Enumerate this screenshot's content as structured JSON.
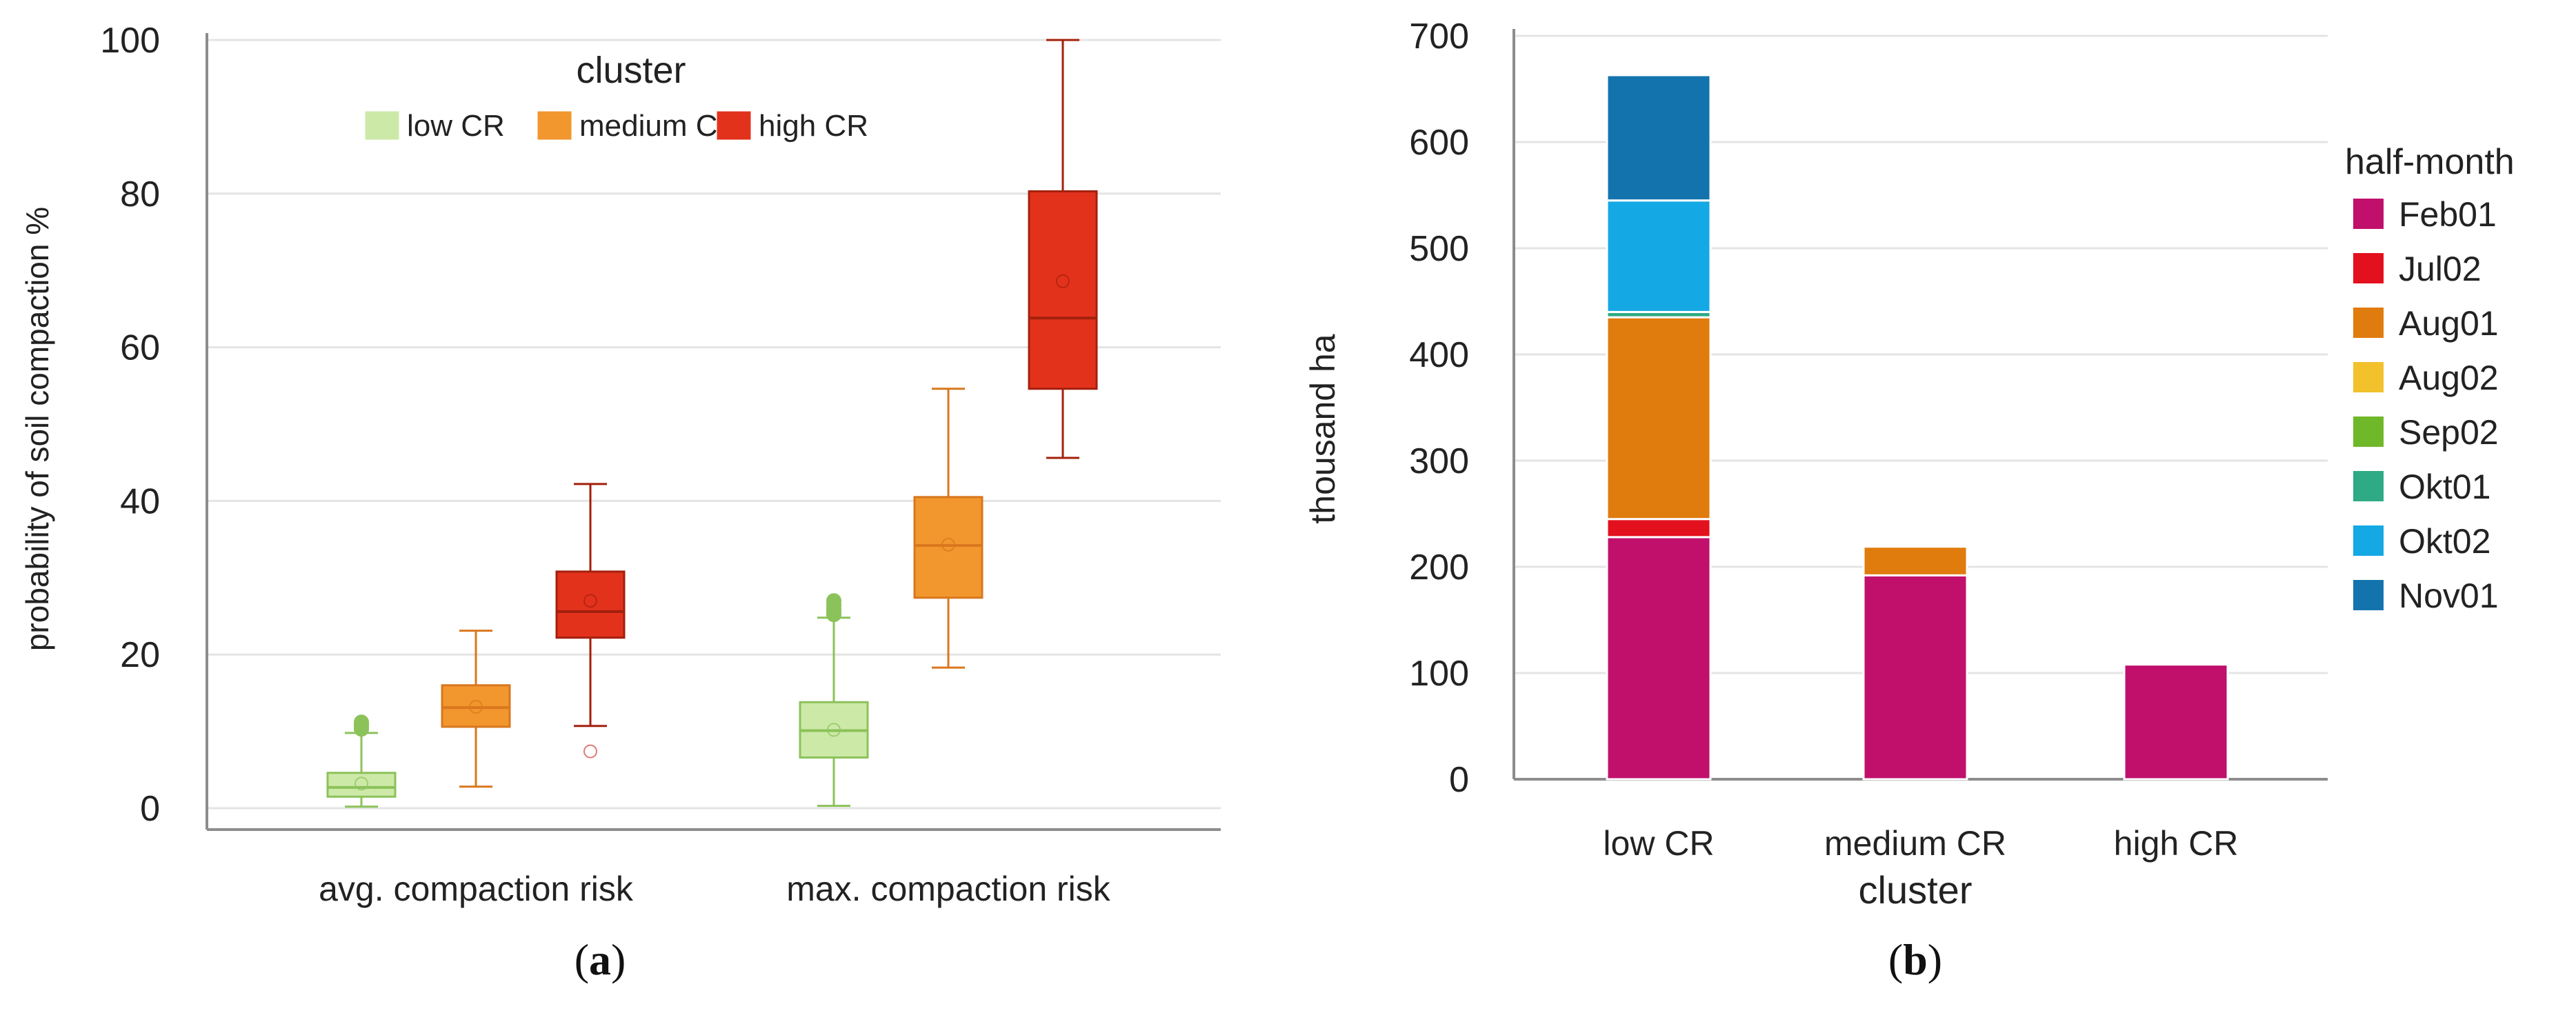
{
  "chart_data": [
    {
      "type": "box",
      "panel_label": "a",
      "ylabel": "probability of soil compaction  %",
      "ylim": [
        0,
        100
      ],
      "yticks": [
        0,
        20,
        40,
        60,
        80,
        100
      ],
      "grid": true,
      "categories": [
        "avg. compaction risk",
        "max. compaction risk"
      ],
      "legend": {
        "title": "cluster",
        "entries": [
          "low CR",
          "medium CR",
          "high CR"
        ],
        "placement": "top-center"
      },
      "series": [
        {
          "name": "low CR",
          "color": "#8cc25a",
          "fill": "#cde9a8",
          "boxes": [
            {
              "q1": 1.5,
              "median": 2.7,
              "q3": 4.6,
              "whisker_low": 0.2,
              "whisker_high": 9.8,
              "mean": 3.2,
              "outliers": [
                10.3,
                10.6,
                10.9,
                11.2
              ]
            },
            {
              "q1": 6.6,
              "median": 10.1,
              "q3": 13.8,
              "whisker_low": 0.3,
              "whisker_high": 24.8,
              "mean": 10.2,
              "outliers": [
                25.2,
                25.6,
                26.0,
                26.5,
                27.0
              ]
            }
          ]
        },
        {
          "name": "medium CR",
          "color": "#d9771d",
          "fill": "#f2962e",
          "boxes": [
            {
              "q1": 10.6,
              "median": 13.1,
              "q3": 16.0,
              "whisker_low": 2.8,
              "whisker_high": 23.1,
              "mean": 13.2,
              "outliers": []
            },
            {
              "q1": 27.4,
              "median": 34.2,
              "q3": 40.5,
              "whisker_low": 18.3,
              "whisker_high": 54.6,
              "mean": 34.3,
              "outliers": []
            }
          ]
        },
        {
          "name": "high CR",
          "color": "#a3200c",
          "fill": "#e3321c",
          "boxes": [
            {
              "q1": 22.2,
              "median": 25.6,
              "q3": 30.8,
              "whisker_low": 10.7,
              "whisker_high": 42.2,
              "mean": 27.0,
              "outliers": [
                7.4
              ]
            },
            {
              "q1": 54.6,
              "median": 63.8,
              "q3": 80.3,
              "whisker_low": 45.6,
              "whisker_high": 100.0,
              "mean": 68.6,
              "outliers": []
            }
          ]
        }
      ]
    },
    {
      "type": "bar",
      "stacked": true,
      "panel_label": "b",
      "xlabel": "cluster",
      "ylabel": "thousand ha",
      "ylim": [
        0,
        700
      ],
      "yticks": [
        0,
        100,
        200,
        300,
        400,
        500,
        600,
        700
      ],
      "grid": true,
      "categories": [
        "low CR",
        "medium CR",
        "high CR"
      ],
      "legend": {
        "title": "half-month",
        "placement": "right"
      },
      "series": [
        {
          "name": "Feb01",
          "color": "#c0106c",
          "values": [
            228,
            192,
            108
          ]
        },
        {
          "name": "Jul02",
          "color": "#e3101e",
          "values": [
            17,
            0,
            0
          ]
        },
        {
          "name": "Aug01",
          "color": "#e07b0e",
          "values": [
            190,
            27,
            0
          ]
        },
        {
          "name": "Aug02",
          "color": "#f2c12c",
          "values": [
            0,
            0,
            0
          ]
        },
        {
          "name": "Sep02",
          "color": "#6fb82a",
          "values": [
            0,
            0,
            0
          ]
        },
        {
          "name": "Okt01",
          "color": "#2eaa84",
          "values": [
            5,
            0,
            0
          ]
        },
        {
          "name": "Okt02",
          "color": "#14a9e4",
          "values": [
            105,
            0,
            0
          ]
        },
        {
          "name": "Nov01",
          "color": "#1374ad",
          "values": [
            118,
            0,
            0
          ]
        }
      ]
    }
  ]
}
